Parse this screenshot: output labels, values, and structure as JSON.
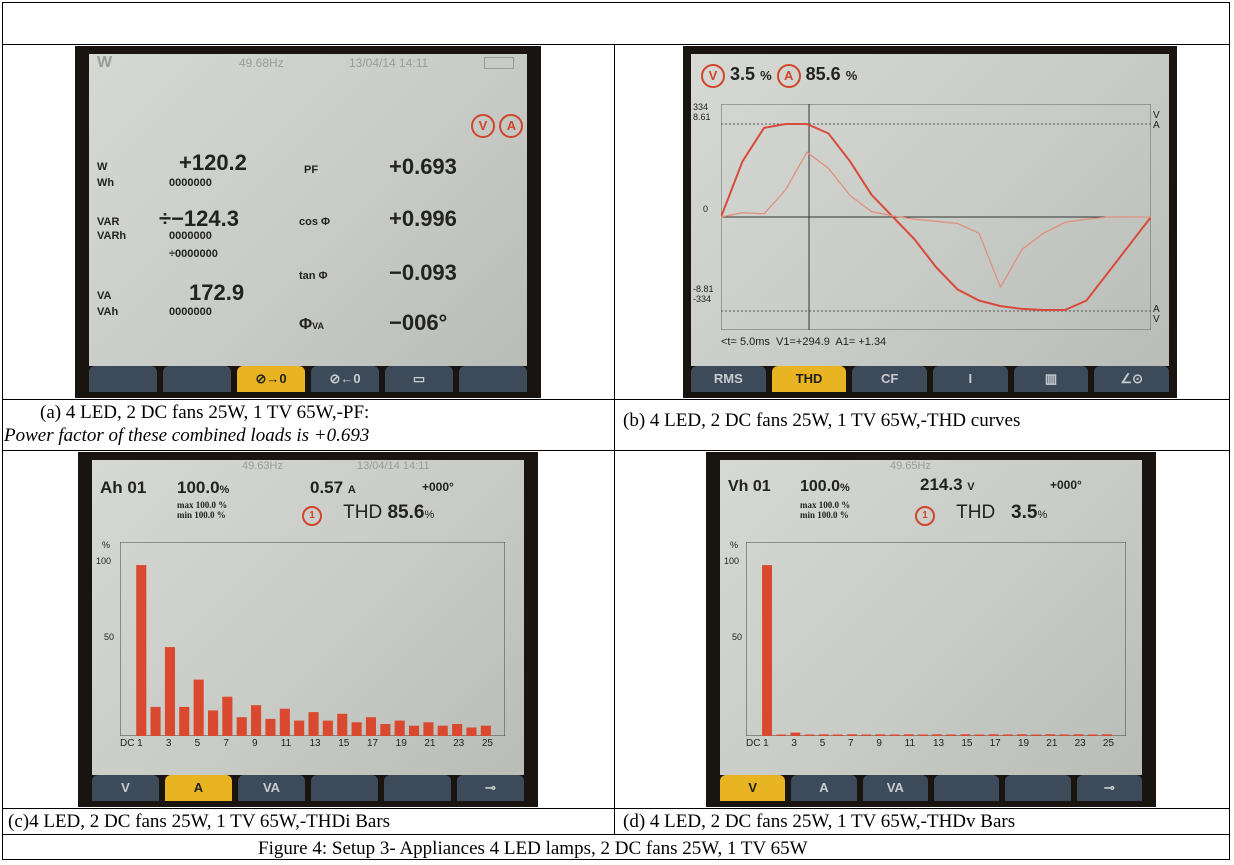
{
  "panels": {
    "a": {
      "header": {
        "label": "W",
        "freq": "49.68Hz",
        "datetime": "13/04/14 14:11"
      },
      "rows": [
        {
          "label": "W",
          "value": "+120.2"
        },
        {
          "label": "Wh",
          "value": "0000000"
        },
        {
          "label": "VAR",
          "value": "÷−124.3"
        },
        {
          "label": "VARh",
          "value": "0000000",
          "value2": "÷0000000"
        },
        {
          "label": "VA",
          "value": "172.9"
        },
        {
          "label": "VAh",
          "value": "0000000"
        }
      ],
      "right_rows": [
        {
          "label": "PF",
          "value": "+0.693"
        },
        {
          "label": "cos Φ",
          "value": "+0.996"
        },
        {
          "label": "tan Φ",
          "value": "−0.093"
        },
        {
          "label": "Φ",
          "sub": "VA",
          "value": "−006°"
        }
      ],
      "badges": [
        "V",
        "A"
      ],
      "softkeys": [
        "",
        "",
        "⊘→0",
        "⊘←0",
        "▭",
        ""
      ],
      "active_softkey": 2
    },
    "b": {
      "header": {
        "v_badge": "V",
        "v_thd": "3.5",
        "unit": "%",
        "a_badge": "A",
        "a_thd": "85.6"
      },
      "axis_left": {
        "top1": "334",
        "top2": "8.61",
        "zero": "0",
        "bot1": "-8.81",
        "bot2": "-334"
      },
      "axis_right": {
        "top1": "V",
        "top2": "A",
        "bot1": "A",
        "bot2": "V"
      },
      "readout": {
        "t": "<t=  5.0ms",
        "v1": "V1=+294.9",
        "a1": "A1=  +1.34"
      },
      "softkeys": [
        "RMS",
        "THD",
        "CF",
        "Ι",
        "▥",
        "∠⊙"
      ],
      "active_softkey": 1
    },
    "c": {
      "header": {
        "freq": "49.63Hz",
        "datetime": "13/04/14 14:11"
      },
      "top": {
        "label": "Ah 01",
        "pct": "100.0",
        "pct_unit": "%",
        "value": "0.57",
        "unit": "A",
        "phase": "+000°"
      },
      "minmax": {
        "max": "max 100.0 %",
        "min": "min 100.0 %"
      },
      "thd": {
        "badge": "1",
        "label": "THD",
        "value": "85.6",
        "unit": "%"
      },
      "y_ticks": [
        "%",
        "100",
        "50"
      ],
      "x_ticks": [
        "DC",
        "1",
        "3",
        "5",
        "7",
        "9",
        "11",
        "13",
        "15",
        "17",
        "19",
        "21",
        "23",
        "25"
      ],
      "softkeys": [
        "V",
        "A",
        "VA",
        "",
        "",
        "⊸"
      ],
      "active_softkey": 1
    },
    "d": {
      "header": {
        "freq": "49.65Hz"
      },
      "top": {
        "label": "Vh 01",
        "pct": "100.0",
        "pct_unit": "%",
        "value": "214.3",
        "unit": "V",
        "phase": "+000°"
      },
      "minmax": {
        "max": "max 100.0 %",
        "min": "min 100.0 %"
      },
      "thd": {
        "badge": "1",
        "label": "THD",
        "value": "3.5",
        "unit": "%"
      },
      "y_ticks": [
        "%",
        "100",
        "50"
      ],
      "x_ticks": [
        "DC",
        "1",
        "3",
        "5",
        "7",
        "9",
        "11",
        "13",
        "15",
        "17",
        "19",
        "21",
        "23",
        "25"
      ],
      "softkeys": [
        "V",
        "A",
        "VA",
        "",
        "",
        "⊸"
      ],
      "active_softkey": 0
    }
  },
  "captions": {
    "a_line1": "(a)  4 LED, 2 DC fans 25W, 1 TV 65W,-PF:",
    "a_line2": "Power factor of these combined loads is +0.693",
    "b": "(b) 4 LED, 2 DC fans 25W, 1 TV 65W,-THD curves",
    "c": "(c)4 LED, 2 DC fans 25W, 1 TV 65W,-THDi Bars",
    "d": "(d) 4 LED, 2 DC fans 25W, 1 TV 65W,-THDv Bars",
    "figure": "Figure 4: Setup 3-  Appliances 4 LED lamps, 2 DC fans 25W, 1 TV 65W"
  },
  "chart_data": [
    {
      "type": "line",
      "title": "",
      "xlabel": "",
      "ylabel": "",
      "x": [
        0,
        1,
        2,
        3,
        4,
        5,
        6,
        7,
        8,
        9,
        10,
        11,
        12,
        13,
        14,
        15,
        16,
        17,
        18,
        19,
        20
      ],
      "series": [
        {
          "values": [
            0,
            200,
            320,
            334,
            334,
            300,
            200,
            80,
            0,
            -80,
            -180,
            -260,
            -300,
            -320,
            -330,
            -334,
            -334,
            -300,
            -200,
            -100,
            0
          ]
        },
        {
          "values": [
            0,
            0.4,
            0.3,
            2.5,
            6.0,
            4.5,
            2.0,
            0.5,
            0.1,
            -0.2,
            -0.4,
            -0.6,
            -1.5,
            -6.5,
            -3.0,
            -1.5,
            -0.5,
            -0.2,
            0,
            0,
            0
          ]
        }
      ],
      "ylim": [
        -334,
        334
      ],
      "grid": false
    },
    {
      "type": "bar",
      "title": "",
      "categories": [
        "1",
        "2",
        "3",
        "4",
        "5",
        "6",
        "7",
        "8",
        "9",
        "10",
        "11",
        "12",
        "13",
        "14",
        "15",
        "16",
        "17",
        "18",
        "19",
        "20",
        "21",
        "22",
        "23",
        "24",
        "25"
      ],
      "values": [
        100,
        17,
        52,
        17,
        33,
        15,
        23,
        11,
        18,
        10,
        16,
        9,
        14,
        9,
        13,
        8,
        11,
        7,
        9,
        6,
        8,
        6,
        7,
        5,
        6
      ],
      "ylim": [
        0,
        110
      ]
    },
    {
      "type": "bar",
      "title": "",
      "categories": [
        "1",
        "2",
        "3",
        "4",
        "5",
        "6",
        "7",
        "8",
        "9",
        "10",
        "11",
        "12",
        "13",
        "14",
        "15",
        "16",
        "17",
        "18",
        "19",
        "20",
        "21",
        "22",
        "23",
        "24",
        "25"
      ],
      "values": [
        100,
        0,
        2,
        0,
        1,
        0,
        1,
        0,
        1,
        0,
        1,
        0,
        1,
        0,
        1,
        0,
        1,
        0,
        1,
        0,
        1,
        0,
        1,
        0,
        1
      ],
      "ylim": [
        0,
        110
      ]
    }
  ]
}
